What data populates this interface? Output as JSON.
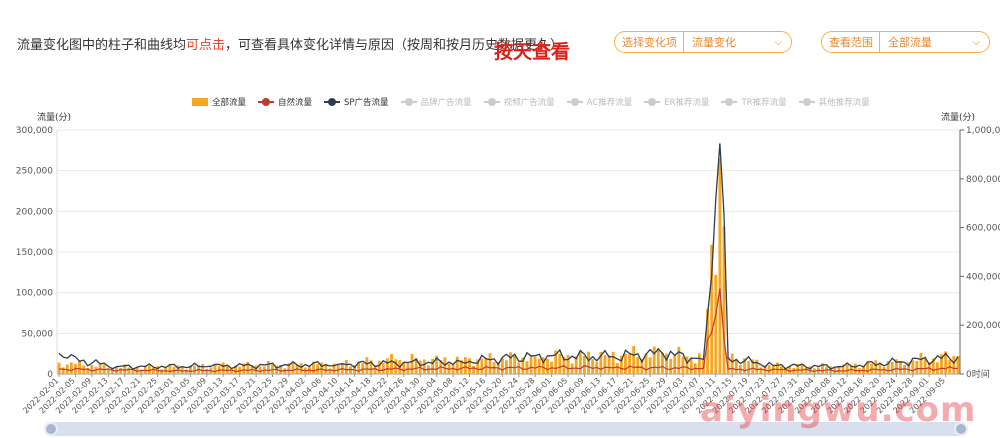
{
  "header": {
    "intro_before": "流量变化图中的柱子和曲线均",
    "intro_highlight": "可点击",
    "intro_after": "，可查看具体变化详情与原因（按周和按月历史数据更久）",
    "big_note": "按天查看"
  },
  "controls": {
    "select_change": {
      "label": "选择变化项",
      "value": "流量变化"
    },
    "select_range": {
      "label": "查看范围",
      "value": "全部流量"
    }
  },
  "legend": [
    {
      "label": "全部流量",
      "kind": "bar",
      "active": true
    },
    {
      "label": "自然流量",
      "kind": "line",
      "active": true
    },
    {
      "label": "SP广告流量",
      "kind": "line",
      "active": true
    },
    {
      "label": "品牌广告流量",
      "kind": "line",
      "active": false
    },
    {
      "label": "视频广告流量",
      "kind": "line",
      "active": false
    },
    {
      "label": "AC推荐流量",
      "kind": "line",
      "active": false
    },
    {
      "label": "ER推荐流量",
      "kind": "line",
      "active": false
    },
    {
      "label": "TR推荐流量",
      "kind": "line",
      "active": false
    },
    {
      "label": "其他推荐流量",
      "kind": "line",
      "active": false
    }
  ],
  "watermark": "aiyingwu.com",
  "colors": {
    "bar": "#f5a623",
    "natural": "#c0392b",
    "sp": "#2f3e4e",
    "grid": "#e8e8e8",
    "accent": "#f6b23f"
  },
  "chart_data": {
    "type": "bar",
    "ylabel_left": "流量(分)",
    "ylabel_right": "流量(分)",
    "y_left_ticks": [
      "300,000",
      "250,000",
      "200,000",
      "150,000",
      "100,000",
      "50,000",
      "0"
    ],
    "y_right_ticks": [
      "1,000,000",
      "800,000",
      "600,000",
      "400,000",
      "200,000",
      "0时间"
    ],
    "ylim_left": [
      0,
      300000
    ],
    "ylim_right": [
      0,
      1000000
    ],
    "x_tick_labels": [
      "2022-02-01",
      "2022-02-05",
      "2022-02-09",
      "2022-02-13",
      "2022-02-17",
      "2022-02-21",
      "2022-02-25",
      "2022-03-01",
      "2022-03-05",
      "2022-03-09",
      "2022-03-13",
      "2022-03-17",
      "2022-03-21",
      "2022-03-25",
      "2022-03-29",
      "2022-04-02",
      "2022-04-06",
      "2022-04-10",
      "2022-04-14",
      "2022-04-18",
      "2022-04-22",
      "2022-04-26",
      "2022-04-30",
      "2022-05-04",
      "2022-05-08",
      "2022-05-12",
      "2022-05-16",
      "2022-05-20",
      "2022-05-24",
      "2022-05-28",
      "2022-06-01",
      "2022-06-05",
      "2022-06-09",
      "2022-06-13",
      "2022-06-17",
      "2022-06-21",
      "2022-06-25",
      "2022-06-29",
      "2022-07-03",
      "2022-07-07",
      "2022-07-11",
      "2022-07-15",
      "2022-07-19",
      "2022-07-23",
      "2022-07-27",
      "2022-07-31",
      "2022-08-04",
      "2022-08-08",
      "2022-08-12",
      "2022-08-16",
      "2022-08-20",
      "2022-08-24",
      "2022-08-28",
      "2022-09-01",
      "2022-09-05"
    ],
    "x_range": [
      "2022-02-01",
      "2022-09-08"
    ],
    "series": [
      {
        "name": "全部流量",
        "type": "bar",
        "axis": "left",
        "anchors": [
          [
            "2022-02-01",
            14000
          ],
          [
            "2022-02-15",
            8000
          ],
          [
            "2022-03-01",
            9000
          ],
          [
            "2022-03-20",
            11000
          ],
          [
            "2022-04-10",
            12000
          ],
          [
            "2022-04-24",
            18000
          ],
          [
            "2022-05-10",
            17000
          ],
          [
            "2022-05-28",
            21000
          ],
          [
            "2022-06-15",
            23000
          ],
          [
            "2022-06-28",
            26000
          ],
          [
            "2022-07-08",
            19000
          ],
          [
            "2022-07-12",
            265000
          ],
          [
            "2022-07-14",
            21000
          ],
          [
            "2022-07-25",
            10000
          ],
          [
            "2022-08-10",
            9000
          ],
          [
            "2022-08-25",
            16000
          ],
          [
            "2022-09-08",
            22000
          ]
        ]
      },
      {
        "name": "自然流量",
        "type": "line",
        "axis": "left",
        "anchors": [
          [
            "2022-02-01",
            6000
          ],
          [
            "2022-03-01",
            4000
          ],
          [
            "2022-04-10",
            5000
          ],
          [
            "2022-05-10",
            7000
          ],
          [
            "2022-06-15",
            8000
          ],
          [
            "2022-07-08",
            7000
          ],
          [
            "2022-07-12",
            105000
          ],
          [
            "2022-07-14",
            6000
          ],
          [
            "2022-08-10",
            4000
          ],
          [
            "2022-09-08",
            7000
          ]
        ]
      },
      {
        "name": "SP广告流量",
        "type": "line",
        "axis": "right",
        "anchors": [
          [
            "2022-02-01",
            85000
          ],
          [
            "2022-02-03",
            65000
          ],
          [
            "2022-02-15",
            30000
          ],
          [
            "2022-03-10",
            32000
          ],
          [
            "2022-04-10",
            40000
          ],
          [
            "2022-05-10",
            50000
          ],
          [
            "2022-05-28",
            75000
          ],
          [
            "2022-06-15",
            70000
          ],
          [
            "2022-06-28",
            85000
          ],
          [
            "2022-07-08",
            60000
          ],
          [
            "2022-07-12",
            945000
          ],
          [
            "2022-07-14",
            65000
          ],
          [
            "2022-07-25",
            35000
          ],
          [
            "2022-08-10",
            30000
          ],
          [
            "2022-08-25",
            50000
          ],
          [
            "2022-09-08",
            70000
          ]
        ]
      }
    ]
  }
}
